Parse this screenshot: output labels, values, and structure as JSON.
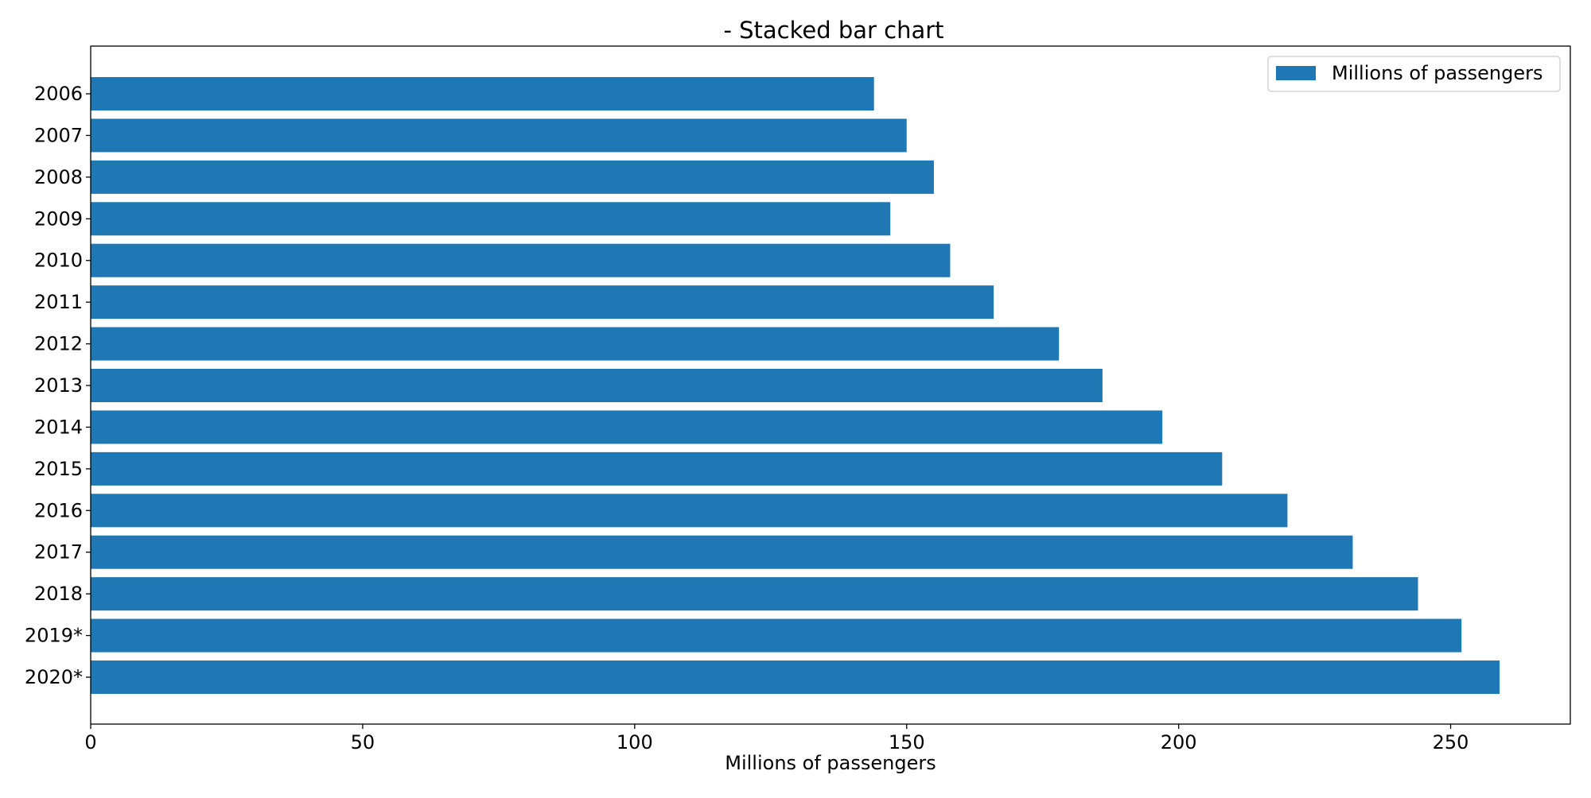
{
  "chart_data": {
    "type": "bar",
    "orientation": "horizontal",
    "title": "- Stacked bar chart",
    "xlabel": "Millions of passengers",
    "ylabel": "",
    "categories": [
      "2006",
      "2007",
      "2008",
      "2009",
      "2010",
      "2011",
      "2012",
      "2013",
      "2014",
      "2015",
      "2016",
      "2017",
      "2018",
      "2019*",
      "2020*"
    ],
    "series": [
      {
        "name": "Millions of passengers",
        "color": "#1f77b4",
        "values": [
          144,
          150,
          155,
          147,
          158,
          166,
          178,
          186,
          197,
          208,
          220,
          232,
          244,
          252,
          259
        ]
      }
    ],
    "xlim": [
      0,
      272
    ],
    "xticks": [
      0,
      50,
      100,
      150,
      200,
      250
    ],
    "xtick_labels": [
      "0",
      "50",
      "100",
      "150",
      "200",
      "250"
    ],
    "grid": false,
    "legend_position": "top-right"
  }
}
